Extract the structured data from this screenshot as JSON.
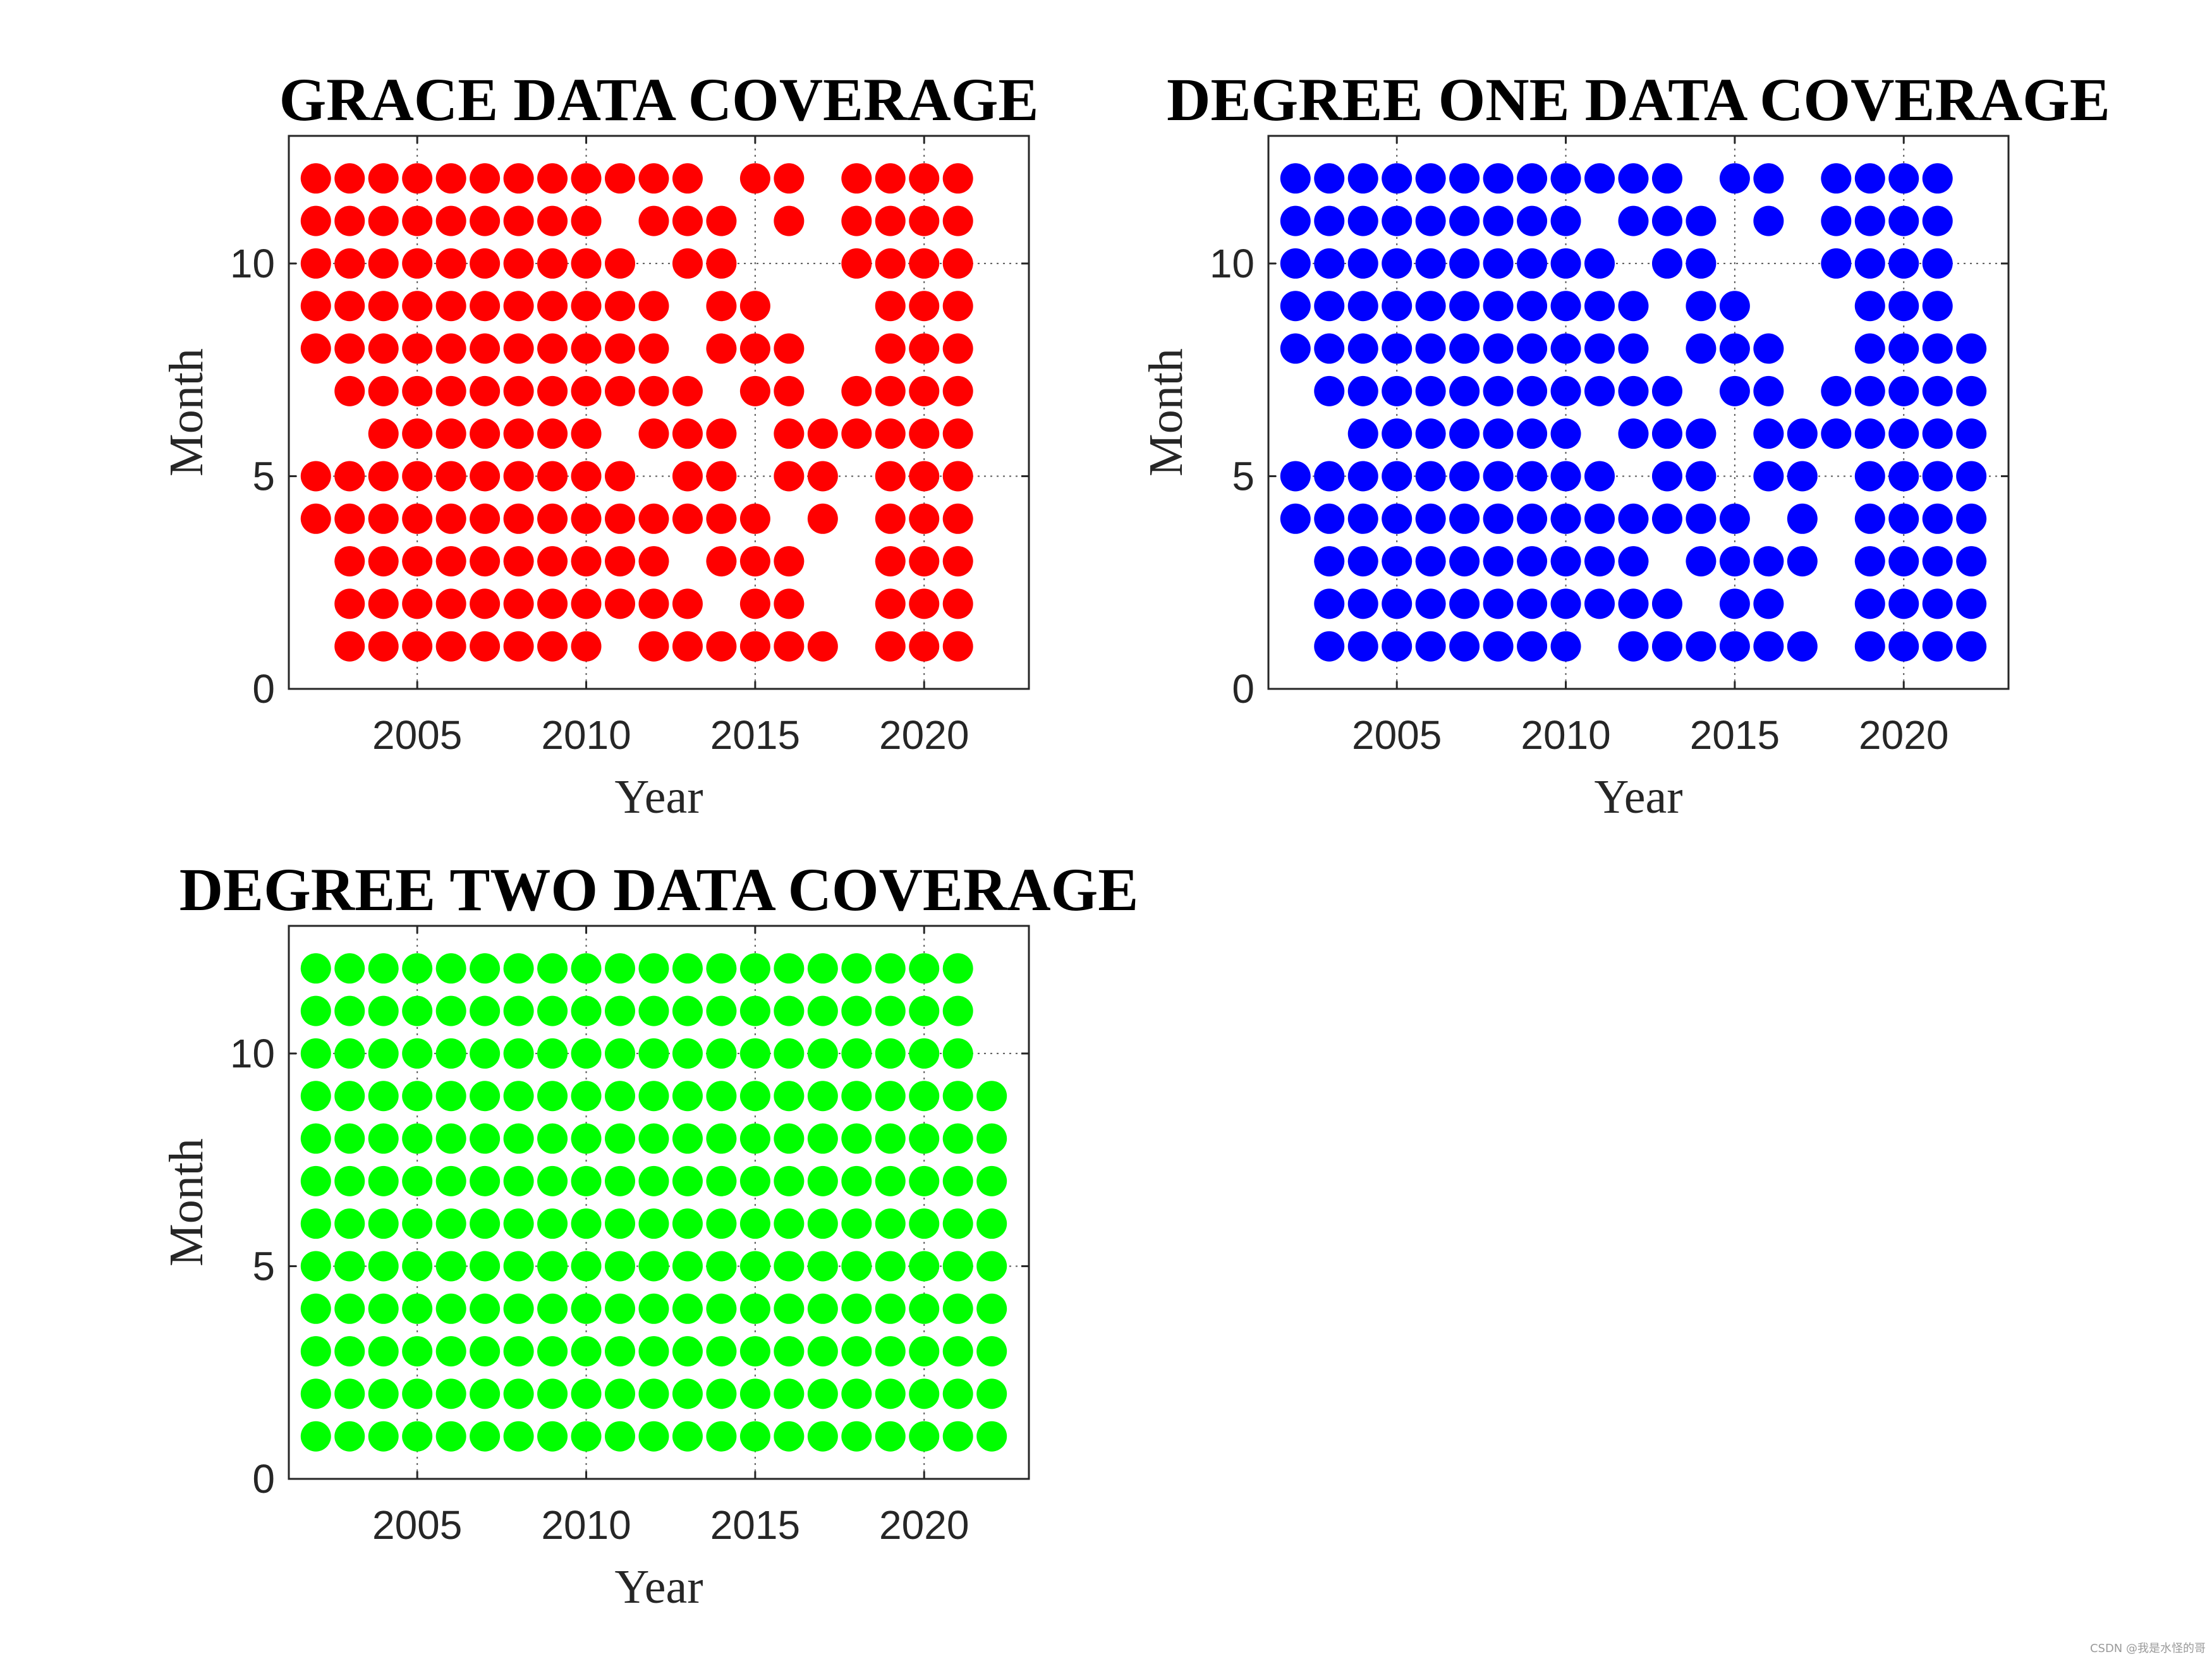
{
  "chart_data": [
    {
      "type": "scatter",
      "title": "GRACE DATA COVERAGE",
      "xlabel": "Year",
      "ylabel": "Month",
      "xlim": [
        2001.2,
        2023.1
      ],
      "ylim": [
        0,
        13
      ],
      "xticks": [
        2005,
        2010,
        2015,
        2020
      ],
      "yticks": [
        0,
        5,
        10
      ],
      "grid": true,
      "color": "#ff0000",
      "rows": [
        {
          "month": 12,
          "years": [
            2002,
            2003,
            2004,
            2005,
            2006,
            2007,
            2008,
            2009,
            2010,
            2011,
            2012,
            2013,
            2015,
            2016,
            2018,
            2019,
            2020,
            2021
          ]
        },
        {
          "month": 11,
          "years": [
            2002,
            2003,
            2004,
            2005,
            2006,
            2007,
            2008,
            2009,
            2010,
            2012,
            2013,
            2014,
            2016,
            2018,
            2019,
            2020,
            2021
          ]
        },
        {
          "month": 10,
          "years": [
            2002,
            2003,
            2004,
            2005,
            2006,
            2007,
            2008,
            2009,
            2010,
            2011,
            2013,
            2014,
            2018,
            2019,
            2020,
            2021
          ]
        },
        {
          "month": 9,
          "years": [
            2002,
            2003,
            2004,
            2005,
            2006,
            2007,
            2008,
            2009,
            2010,
            2011,
            2012,
            2014,
            2015,
            2019,
            2020,
            2021
          ]
        },
        {
          "month": 8,
          "years": [
            2002,
            2003,
            2004,
            2005,
            2006,
            2007,
            2008,
            2009,
            2010,
            2011,
            2012,
            2014,
            2015,
            2016,
            2019,
            2020,
            2021
          ]
        },
        {
          "month": 7,
          "years": [
            2003,
            2004,
            2005,
            2006,
            2007,
            2008,
            2009,
            2010,
            2011,
            2012,
            2013,
            2015,
            2016,
            2018,
            2019,
            2020,
            2021
          ]
        },
        {
          "month": 6,
          "years": [
            2004,
            2005,
            2006,
            2007,
            2008,
            2009,
            2010,
            2012,
            2013,
            2014,
            2016,
            2017,
            2018,
            2019,
            2020,
            2021
          ]
        },
        {
          "month": 5,
          "years": [
            2002,
            2003,
            2004,
            2005,
            2006,
            2007,
            2008,
            2009,
            2010,
            2011,
            2013,
            2014,
            2016,
            2017,
            2019,
            2020,
            2021
          ]
        },
        {
          "month": 4,
          "years": [
            2002,
            2003,
            2004,
            2005,
            2006,
            2007,
            2008,
            2009,
            2010,
            2011,
            2012,
            2013,
            2014,
            2015,
            2017,
            2019,
            2020,
            2021
          ]
        },
        {
          "month": 3,
          "years": [
            2003,
            2004,
            2005,
            2006,
            2007,
            2008,
            2009,
            2010,
            2011,
            2012,
            2014,
            2015,
            2016,
            2019,
            2020,
            2021
          ]
        },
        {
          "month": 2,
          "years": [
            2003,
            2004,
            2005,
            2006,
            2007,
            2008,
            2009,
            2010,
            2011,
            2012,
            2013,
            2015,
            2016,
            2019,
            2020,
            2021
          ]
        },
        {
          "month": 1,
          "years": [
            2003,
            2004,
            2005,
            2006,
            2007,
            2008,
            2009,
            2010,
            2012,
            2013,
            2014,
            2015,
            2016,
            2017,
            2019,
            2020,
            2021
          ]
        }
      ]
    },
    {
      "type": "scatter",
      "title": "DEGREE ONE DATA COVERAGE",
      "xlabel": "Year",
      "ylabel": "Month",
      "xlim": [
        2001.2,
        2023.1
      ],
      "ylim": [
        0,
        13
      ],
      "xticks": [
        2005,
        2010,
        2015,
        2020
      ],
      "yticks": [
        0,
        5,
        10
      ],
      "grid": true,
      "color": "#0000ff",
      "rows": [
        {
          "month": 12,
          "years": [
            2002,
            2003,
            2004,
            2005,
            2006,
            2007,
            2008,
            2009,
            2010,
            2011,
            2012,
            2013,
            2015,
            2016,
            2018,
            2019,
            2020,
            2021
          ]
        },
        {
          "month": 11,
          "years": [
            2002,
            2003,
            2004,
            2005,
            2006,
            2007,
            2008,
            2009,
            2010,
            2012,
            2013,
            2014,
            2016,
            2018,
            2019,
            2020,
            2021
          ]
        },
        {
          "month": 10,
          "years": [
            2002,
            2003,
            2004,
            2005,
            2006,
            2007,
            2008,
            2009,
            2010,
            2011,
            2013,
            2014,
            2018,
            2019,
            2020,
            2021
          ]
        },
        {
          "month": 9,
          "years": [
            2002,
            2003,
            2004,
            2005,
            2006,
            2007,
            2008,
            2009,
            2010,
            2011,
            2012,
            2014,
            2015,
            2019,
            2020,
            2021
          ]
        },
        {
          "month": 8,
          "years": [
            2002,
            2003,
            2004,
            2005,
            2006,
            2007,
            2008,
            2009,
            2010,
            2011,
            2012,
            2014,
            2015,
            2016,
            2019,
            2020,
            2021,
            2022
          ]
        },
        {
          "month": 7,
          "years": [
            2003,
            2004,
            2005,
            2006,
            2007,
            2008,
            2009,
            2010,
            2011,
            2012,
            2013,
            2015,
            2016,
            2018,
            2019,
            2020,
            2021,
            2022
          ]
        },
        {
          "month": 6,
          "years": [
            2004,
            2005,
            2006,
            2007,
            2008,
            2009,
            2010,
            2012,
            2013,
            2014,
            2016,
            2017,
            2018,
            2019,
            2020,
            2021,
            2022
          ]
        },
        {
          "month": 5,
          "years": [
            2002,
            2003,
            2004,
            2005,
            2006,
            2007,
            2008,
            2009,
            2010,
            2011,
            2013,
            2014,
            2016,
            2017,
            2019,
            2020,
            2021,
            2022
          ]
        },
        {
          "month": 4,
          "years": [
            2002,
            2003,
            2004,
            2005,
            2006,
            2007,
            2008,
            2009,
            2010,
            2011,
            2012,
            2013,
            2014,
            2015,
            2017,
            2019,
            2020,
            2021,
            2022
          ]
        },
        {
          "month": 3,
          "years": [
            2003,
            2004,
            2005,
            2006,
            2007,
            2008,
            2009,
            2010,
            2011,
            2012,
            2014,
            2015,
            2016,
            2017,
            2019,
            2020,
            2021,
            2022
          ]
        },
        {
          "month": 2,
          "years": [
            2003,
            2004,
            2005,
            2006,
            2007,
            2008,
            2009,
            2010,
            2011,
            2012,
            2013,
            2015,
            2016,
            2019,
            2020,
            2021,
            2022
          ]
        },
        {
          "month": 1,
          "years": [
            2003,
            2004,
            2005,
            2006,
            2007,
            2008,
            2009,
            2010,
            2012,
            2013,
            2014,
            2015,
            2016,
            2017,
            2019,
            2020,
            2021,
            2022
          ]
        }
      ]
    },
    {
      "type": "scatter",
      "title": "DEGREE TWO DATA COVERAGE",
      "xlabel": "Year",
      "ylabel": "Month",
      "xlim": [
        2001.2,
        2023.1
      ],
      "ylim": [
        0,
        13
      ],
      "xticks": [
        2005,
        2010,
        2015,
        2020
      ],
      "yticks": [
        0,
        5,
        10
      ],
      "grid": true,
      "color": "#00ff00",
      "rows": [
        {
          "month": 12,
          "years": [
            2002,
            2003,
            2004,
            2005,
            2006,
            2007,
            2008,
            2009,
            2010,
            2011,
            2012,
            2013,
            2014,
            2015,
            2016,
            2017,
            2018,
            2019,
            2020,
            2021
          ]
        },
        {
          "month": 11,
          "years": [
            2002,
            2003,
            2004,
            2005,
            2006,
            2007,
            2008,
            2009,
            2010,
            2011,
            2012,
            2013,
            2014,
            2015,
            2016,
            2017,
            2018,
            2019,
            2020,
            2021
          ]
        },
        {
          "month": 10,
          "years": [
            2002,
            2003,
            2004,
            2005,
            2006,
            2007,
            2008,
            2009,
            2010,
            2011,
            2012,
            2013,
            2014,
            2015,
            2016,
            2017,
            2018,
            2019,
            2020,
            2021
          ]
        },
        {
          "month": 9,
          "years": [
            2002,
            2003,
            2004,
            2005,
            2006,
            2007,
            2008,
            2009,
            2010,
            2011,
            2012,
            2013,
            2014,
            2015,
            2016,
            2017,
            2018,
            2019,
            2020,
            2021,
            2022
          ]
        },
        {
          "month": 8,
          "years": [
            2002,
            2003,
            2004,
            2005,
            2006,
            2007,
            2008,
            2009,
            2010,
            2011,
            2012,
            2013,
            2014,
            2015,
            2016,
            2017,
            2018,
            2019,
            2020,
            2021,
            2022
          ]
        },
        {
          "month": 7,
          "years": [
            2002,
            2003,
            2004,
            2005,
            2006,
            2007,
            2008,
            2009,
            2010,
            2011,
            2012,
            2013,
            2014,
            2015,
            2016,
            2017,
            2018,
            2019,
            2020,
            2021,
            2022
          ]
        },
        {
          "month": 6,
          "years": [
            2002,
            2003,
            2004,
            2005,
            2006,
            2007,
            2008,
            2009,
            2010,
            2011,
            2012,
            2013,
            2014,
            2015,
            2016,
            2017,
            2018,
            2019,
            2020,
            2021,
            2022
          ]
        },
        {
          "month": 5,
          "years": [
            2002,
            2003,
            2004,
            2005,
            2006,
            2007,
            2008,
            2009,
            2010,
            2011,
            2012,
            2013,
            2014,
            2015,
            2016,
            2017,
            2018,
            2019,
            2020,
            2021,
            2022
          ]
        },
        {
          "month": 4,
          "years": [
            2002,
            2003,
            2004,
            2005,
            2006,
            2007,
            2008,
            2009,
            2010,
            2011,
            2012,
            2013,
            2014,
            2015,
            2016,
            2017,
            2018,
            2019,
            2020,
            2021,
            2022
          ]
        },
        {
          "month": 3,
          "years": [
            2002,
            2003,
            2004,
            2005,
            2006,
            2007,
            2008,
            2009,
            2010,
            2011,
            2012,
            2013,
            2014,
            2015,
            2016,
            2017,
            2018,
            2019,
            2020,
            2021,
            2022
          ]
        },
        {
          "month": 2,
          "years": [
            2002,
            2003,
            2004,
            2005,
            2006,
            2007,
            2008,
            2009,
            2010,
            2011,
            2012,
            2013,
            2014,
            2015,
            2016,
            2017,
            2018,
            2019,
            2020,
            2021,
            2022
          ]
        },
        {
          "month": 1,
          "years": [
            2002,
            2003,
            2004,
            2005,
            2006,
            2007,
            2008,
            2009,
            2010,
            2011,
            2012,
            2013,
            2014,
            2015,
            2016,
            2017,
            2018,
            2019,
            2020,
            2021,
            2022
          ]
        }
      ]
    }
  ],
  "watermark": "CSDN @我是水怪的哥"
}
